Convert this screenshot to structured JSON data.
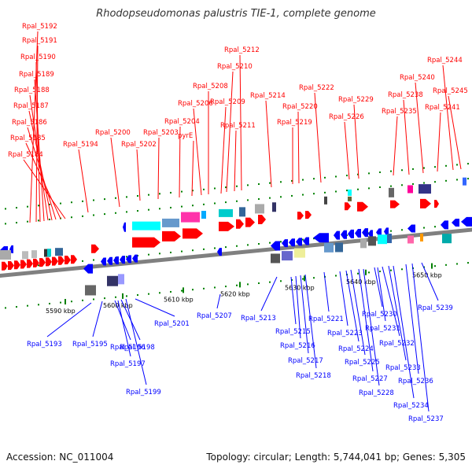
{
  "title": "Rhodopseudomonas palustris TIE-1, complete genome",
  "footer": {
    "accession": "Accession: NC_011004",
    "summary": "Topology: circular; Length: 5,744,041 bp; Genes: 5,305"
  },
  "colors": {
    "forward": "#ff0000",
    "reverse": "#0000ff",
    "backbone": "#808080",
    "tick": "#008000"
  },
  "axis": {
    "ticks": [
      "5590 kbp",
      "5600 kbp",
      "5610 kbp",
      "5620 kbp",
      "5630 kbp",
      "5640 kbp",
      "5650 kbp"
    ]
  },
  "top_labels": [
    "Rpal_5192",
    "Rpal_5191",
    "Rpal_5190",
    "Rpal_5189",
    "Rpal_5188",
    "Rpal_5187",
    "Rpal_5186",
    "Rpal_5185",
    "Rpal_5184",
    "Rpal_5194",
    "Rpal_5200",
    "Rpal_5202",
    "Rpal_5203",
    "Rpal_5204",
    "pyrE",
    "Rpal_5206",
    "Rpal_5208",
    "Rpal_5209",
    "Rpal_5210",
    "Rpal_5211",
    "Rpal_5212",
    "Rpal_5214",
    "Rpal_5219",
    "Rpal_5220",
    "Rpal_5222",
    "Rpal_5226",
    "Rpal_5229",
    "Rpal_5235",
    "Rpal_5238",
    "Rpal_5240",
    "Rpal_5241",
    "Rpal_5244",
    "Rpal_5245"
  ],
  "bottom_labels": [
    "Rpal_5193",
    "Rpal_5195",
    "Rpal_5196",
    "Rpal_5197",
    "Rpal_5198",
    "Rpal_5199",
    "Rpal_5201",
    "Rpal_5207",
    "Rpal_5213",
    "Rpal_5215",
    "Rpal_5216",
    "Rpal_5217",
    "Rpal_5218",
    "Rpal_5221",
    "Rpal_5223",
    "Rpal_5224",
    "Rpal_5225",
    "Rpal_5227",
    "Rpal_5228",
    "Rpal_5230",
    "Rpal_5231",
    "Rpal_5232",
    "Rpal_5233",
    "Rpal_5234",
    "Rpal_5236",
    "Rpal_5237",
    "Rpal_5239"
  ]
}
